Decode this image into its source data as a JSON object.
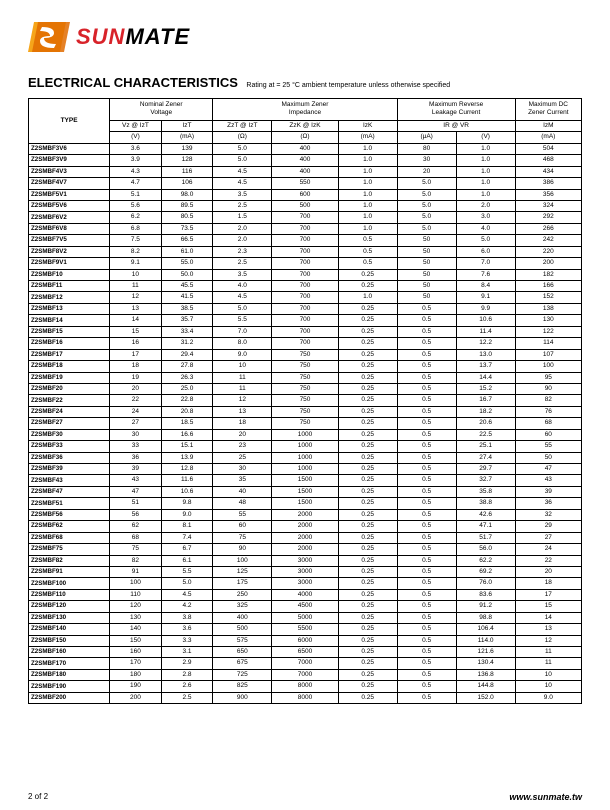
{
  "logo": {
    "red_part": "SUN",
    "black_part": "MATE"
  },
  "title": {
    "main": "ELECTRICAL CHARACTERISTICS",
    "sub": "Rating at  = 25 °C ambient temperature unless otherwise specified"
  },
  "headers": {
    "type": "TYPE",
    "groups": {
      "nzv": "Nominal Zener\nVoltage",
      "mzi": "Maximum Zener\nImpedance",
      "mrlc": "Maximum Reverse\nLeakage Current",
      "mdczc": "Maximum DC\nZener Current"
    },
    "sub": {
      "vz": "Vz @ IzT",
      "izt": "IzT",
      "zzt": "ZzT @ IzT",
      "zzk": "ZzK @ IzK",
      "izk": "IzK",
      "ir": "IR   @   VR",
      "vr": "",
      "izm": "IzM"
    },
    "units": {
      "vz": "(V)",
      "izt": "(mA)",
      "zzt": "(Ω)",
      "zzk": "(Ω)",
      "izk": "(mA)",
      "ir": "(μA)",
      "vr": "(V)",
      "izm": "(mA)"
    }
  },
  "rows": [
    {
      "t": "Z2SMBF3V6",
      "vz": "3.6",
      "izt": "139",
      "zzt": "5.0",
      "zzk": "400",
      "izk": "1.0",
      "ir": "80",
      "vr": "1.0",
      "izm": "504"
    },
    {
      "t": "Z2SMBF3V9",
      "vz": "3.9",
      "izt": "128",
      "zzt": "5.0",
      "zzk": "400",
      "izk": "1.0",
      "ir": "30",
      "vr": "1.0",
      "izm": "468"
    },
    {
      "t": "Z2SMBF4V3",
      "vz": "4.3",
      "izt": "116",
      "zzt": "4.5",
      "zzk": "400",
      "izk": "1.0",
      "ir": "20",
      "vr": "1.0",
      "izm": "434"
    },
    {
      "t": "Z2SMBF4V7",
      "vz": "4.7",
      "izt": "106",
      "zzt": "4.5",
      "zzk": "550",
      "izk": "1.0",
      "ir": "5.0",
      "vr": "1.0",
      "izm": "386"
    },
    {
      "t": "Z2SMBF5V1",
      "vz": "5.1",
      "izt": "98.0",
      "zzt": "3.5",
      "zzk": "600",
      "izk": "1.0",
      "ir": "5.0",
      "vr": "1.0",
      "izm": "356"
    },
    {
      "t": "Z2SMBF5V6",
      "vz": "5.6",
      "izt": "89.5",
      "zzt": "2.5",
      "zzk": "500",
      "izk": "1.0",
      "ir": "5.0",
      "vr": "2.0",
      "izm": "324"
    },
    {
      "t": "Z2SMBF6V2",
      "vz": "6.2",
      "izt": "80.5",
      "zzt": "1.5",
      "zzk": "700",
      "izk": "1.0",
      "ir": "5.0",
      "vr": "3.0",
      "izm": "292"
    },
    {
      "t": "Z2SMBF6V8",
      "vz": "6.8",
      "izt": "73.5",
      "zzt": "2.0",
      "zzk": "700",
      "izk": "1.0",
      "ir": "5.0",
      "vr": "4.0",
      "izm": "266"
    },
    {
      "t": "Z2SMBF7V5",
      "vz": "7.5",
      "izt": "66.5",
      "zzt": "2.0",
      "zzk": "700",
      "izk": "0.5",
      "ir": "50",
      "vr": "5.0",
      "izm": "242"
    },
    {
      "t": "Z2SMBF8V2",
      "vz": "8.2",
      "izt": "61.0",
      "zzt": "2.3",
      "zzk": "700",
      "izk": "0.5",
      "ir": "50",
      "vr": "6.0",
      "izm": "220"
    },
    {
      "t": "Z2SMBF9V1",
      "vz": "9.1",
      "izt": "55.0",
      "zzt": "2.5",
      "zzk": "700",
      "izk": "0.5",
      "ir": "50",
      "vr": "7.0",
      "izm": "200"
    },
    {
      "t": "Z2SMBF10",
      "vz": "10",
      "izt": "50.0",
      "zzt": "3.5",
      "zzk": "700",
      "izk": "0.25",
      "ir": "50",
      "vr": "7.6",
      "izm": "182"
    },
    {
      "t": "Z2SMBF11",
      "vz": "11",
      "izt": "45.5",
      "zzt": "4.0",
      "zzk": "700",
      "izk": "0.25",
      "ir": "50",
      "vr": "8.4",
      "izm": "166"
    },
    {
      "t": "Z2SMBF12",
      "vz": "12",
      "izt": "41.5",
      "zzt": "4.5",
      "zzk": "700",
      "izk": "1.0",
      "ir": "50",
      "vr": "9.1",
      "izm": "152"
    },
    {
      "t": "Z2SMBF13",
      "vz": "13",
      "izt": "38.5",
      "zzt": "5.0",
      "zzk": "700",
      "izk": "0.25",
      "ir": "0.5",
      "vr": "9.9",
      "izm": "138"
    },
    {
      "t": "Z2SMBF14",
      "vz": "14",
      "izt": "35.7",
      "zzt": "5.5",
      "zzk": "700",
      "izk": "0.25",
      "ir": "0.5",
      "vr": "10.6",
      "izm": "130"
    },
    {
      "t": "Z2SMBF15",
      "vz": "15",
      "izt": "33.4",
      "zzt": "7.0",
      "zzk": "700",
      "izk": "0.25",
      "ir": "0.5",
      "vr": "11.4",
      "izm": "122"
    },
    {
      "t": "Z2SMBF16",
      "vz": "16",
      "izt": "31.2",
      "zzt": "8.0",
      "zzk": "700",
      "izk": "0.25",
      "ir": "0.5",
      "vr": "12.2",
      "izm": "114"
    },
    {
      "t": "Z2SMBF17",
      "vz": "17",
      "izt": "29.4",
      "zzt": "9.0",
      "zzk": "750",
      "izk": "0.25",
      "ir": "0.5",
      "vr": "13.0",
      "izm": "107"
    },
    {
      "t": "Z2SMBF18",
      "vz": "18",
      "izt": "27.8",
      "zzt": "10",
      "zzk": "750",
      "izk": "0.25",
      "ir": "0.5",
      "vr": "13.7",
      "izm": "100"
    },
    {
      "t": "Z2SMBF19",
      "vz": "19",
      "izt": "26.3",
      "zzt": "11",
      "zzk": "750",
      "izk": "0.25",
      "ir": "0.5",
      "vr": "14.4",
      "izm": "95"
    },
    {
      "t": "Z2SMBF20",
      "vz": "20",
      "izt": "25.0",
      "zzt": "11",
      "zzk": "750",
      "izk": "0.25",
      "ir": "0.5",
      "vr": "15.2",
      "izm": "90"
    },
    {
      "t": "Z2SMBF22",
      "vz": "22",
      "izt": "22.8",
      "zzt": "12",
      "zzk": "750",
      "izk": "0.25",
      "ir": "0.5",
      "vr": "16.7",
      "izm": "82"
    },
    {
      "t": "Z2SMBF24",
      "vz": "24",
      "izt": "20.8",
      "zzt": "13",
      "zzk": "750",
      "izk": "0.25",
      "ir": "0.5",
      "vr": "18.2",
      "izm": "76"
    },
    {
      "t": "Z2SMBF27",
      "vz": "27",
      "izt": "18.5",
      "zzt": "18",
      "zzk": "750",
      "izk": "0.25",
      "ir": "0.5",
      "vr": "20.6",
      "izm": "68"
    },
    {
      "t": "Z2SMBF30",
      "vz": "30",
      "izt": "16.6",
      "zzt": "20",
      "zzk": "1000",
      "izk": "0.25",
      "ir": "0.5",
      "vr": "22.5",
      "izm": "60"
    },
    {
      "t": "Z2SMBF33",
      "vz": "33",
      "izt": "15.1",
      "zzt": "23",
      "zzk": "1000",
      "izk": "0.25",
      "ir": "0.5",
      "vr": "25.1",
      "izm": "55"
    },
    {
      "t": "Z2SMBF36",
      "vz": "36",
      "izt": "13.9",
      "zzt": "25",
      "zzk": "1000",
      "izk": "0.25",
      "ir": "0.5",
      "vr": "27.4",
      "izm": "50"
    },
    {
      "t": "Z2SMBF39",
      "vz": "39",
      "izt": "12.8",
      "zzt": "30",
      "zzk": "1000",
      "izk": "0.25",
      "ir": "0.5",
      "vr": "29.7",
      "izm": "47"
    },
    {
      "t": "Z2SMBF43",
      "vz": "43",
      "izt": "11.6",
      "zzt": "35",
      "zzk": "1500",
      "izk": "0.25",
      "ir": "0.5",
      "vr": "32.7",
      "izm": "43"
    },
    {
      "t": "Z2SMBF47",
      "vz": "47",
      "izt": "10.6",
      "zzt": "40",
      "zzk": "1500",
      "izk": "0.25",
      "ir": "0.5",
      "vr": "35.8",
      "izm": "39"
    },
    {
      "t": "Z2SMBF51",
      "vz": "51",
      "izt": "9.8",
      "zzt": "48",
      "zzk": "1500",
      "izk": "0.25",
      "ir": "0.5",
      "vr": "38.8",
      "izm": "36"
    },
    {
      "t": "Z2SMBF56",
      "vz": "56",
      "izt": "9.0",
      "zzt": "55",
      "zzk": "2000",
      "izk": "0.25",
      "ir": "0.5",
      "vr": "42.6",
      "izm": "32"
    },
    {
      "t": "Z2SMBF62",
      "vz": "62",
      "izt": "8.1",
      "zzt": "60",
      "zzk": "2000",
      "izk": "0.25",
      "ir": "0.5",
      "vr": "47.1",
      "izm": "29"
    },
    {
      "t": "Z2SMBF68",
      "vz": "68",
      "izt": "7.4",
      "zzt": "75",
      "zzk": "2000",
      "izk": "0.25",
      "ir": "0.5",
      "vr": "51.7",
      "izm": "27"
    },
    {
      "t": "Z2SMBF75",
      "vz": "75",
      "izt": "6.7",
      "zzt": "90",
      "zzk": "2000",
      "izk": "0.25",
      "ir": "0.5",
      "vr": "56.0",
      "izm": "24"
    },
    {
      "t": "Z2SMBF82",
      "vz": "82",
      "izt": "6.1",
      "zzt": "100",
      "zzk": "3000",
      "izk": "0.25",
      "ir": "0.5",
      "vr": "62.2",
      "izm": "22"
    },
    {
      "t": "Z2SMBF91",
      "vz": "91",
      "izt": "5.5",
      "zzt": "125",
      "zzk": "3000",
      "izk": "0.25",
      "ir": "0.5",
      "vr": "69.2",
      "izm": "20"
    },
    {
      "t": "Z2SMBF100",
      "vz": "100",
      "izt": "5.0",
      "zzt": "175",
      "zzk": "3000",
      "izk": "0.25",
      "ir": "0.5",
      "vr": "76.0",
      "izm": "18"
    },
    {
      "t": "Z2SMBF110",
      "vz": "110",
      "izt": "4.5",
      "zzt": "250",
      "zzk": "4000",
      "izk": "0.25",
      "ir": "0.5",
      "vr": "83.6",
      "izm": "17"
    },
    {
      "t": "Z2SMBF120",
      "vz": "120",
      "izt": "4.2",
      "zzt": "325",
      "zzk": "4500",
      "izk": "0.25",
      "ir": "0.5",
      "vr": "91.2",
      "izm": "15"
    },
    {
      "t": "Z2SMBF130",
      "vz": "130",
      "izt": "3.8",
      "zzt": "400",
      "zzk": "5000",
      "izk": "0.25",
      "ir": "0.5",
      "vr": "98.8",
      "izm": "14"
    },
    {
      "t": "Z2SMBF140",
      "vz": "140",
      "izt": "3.6",
      "zzt": "500",
      "zzk": "5500",
      "izk": "0.25",
      "ir": "0.5",
      "vr": "106.4",
      "izm": "13"
    },
    {
      "t": "Z2SMBF150",
      "vz": "150",
      "izt": "3.3",
      "zzt": "575",
      "zzk": "6000",
      "izk": "0.25",
      "ir": "0.5",
      "vr": "114.0",
      "izm": "12"
    },
    {
      "t": "Z2SMBF160",
      "vz": "160",
      "izt": "3.1",
      "zzt": "650",
      "zzk": "6500",
      "izk": "0.25",
      "ir": "0.5",
      "vr": "121.6",
      "izm": "11"
    },
    {
      "t": "Z2SMBF170",
      "vz": "170",
      "izt": "2.9",
      "zzt": "675",
      "zzk": "7000",
      "izk": "0.25",
      "ir": "0.5",
      "vr": "130.4",
      "izm": "11"
    },
    {
      "t": "Z2SMBF180",
      "vz": "180",
      "izt": "2.8",
      "zzt": "725",
      "zzk": "7000",
      "izk": "0.25",
      "ir": "0.5",
      "vr": "136.8",
      "izm": "10"
    },
    {
      "t": "Z2SMBF190",
      "vz": "190",
      "izt": "2.6",
      "zzt": "825",
      "zzk": "8000",
      "izk": "0.25",
      "ir": "0.5",
      "vr": "144.8",
      "izm": "10"
    },
    {
      "t": "Z2SMBF200",
      "vz": "200",
      "izt": "2.5",
      "zzt": "900",
      "zzk": "8000",
      "izk": "0.25",
      "ir": "0.5",
      "vr": "152.0",
      "izm": "9.0"
    }
  ],
  "footer": {
    "page": "2 of 2",
    "url": "www.sunmate.tw"
  },
  "colors": {
    "orange1": "#f6a51a",
    "orange2": "#e06b00",
    "red": "#d8232a"
  }
}
